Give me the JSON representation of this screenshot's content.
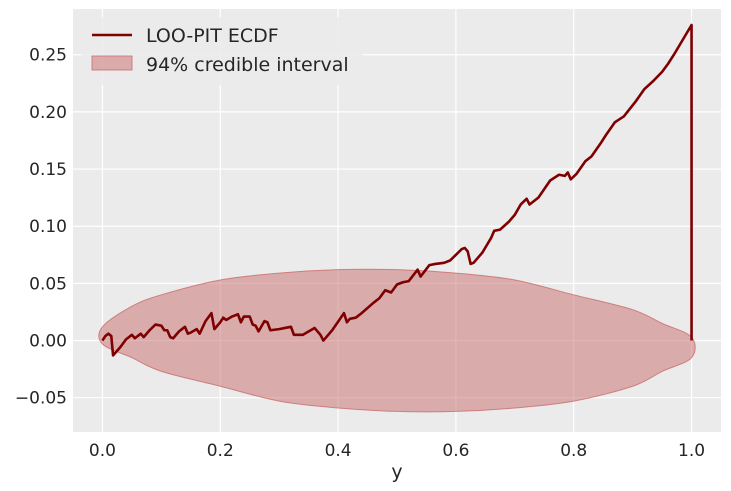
{
  "chart_data": {
    "type": "line",
    "title": "",
    "xlabel": "y",
    "ylabel": "",
    "xlim": [
      -0.05,
      1.05
    ],
    "ylim": [
      -0.08,
      0.29
    ],
    "grid": true,
    "legend_position": "top-left",
    "x_ticks": [
      {
        "value": 0.0,
        "label": "0.0"
      },
      {
        "value": 0.2,
        "label": "0.2"
      },
      {
        "value": 0.4,
        "label": "0.4"
      },
      {
        "value": 0.6,
        "label": "0.6"
      },
      {
        "value": 0.8,
        "label": "0.8"
      },
      {
        "value": 1.0,
        "label": "1.0"
      }
    ],
    "y_ticks": [
      {
        "value": -0.05,
        "label": "−0.05"
      },
      {
        "value": 0.0,
        "label": "0.00"
      },
      {
        "value": 0.05,
        "label": "0.05"
      },
      {
        "value": 0.1,
        "label": "0.10"
      },
      {
        "value": 0.15,
        "label": "0.15"
      },
      {
        "value": 0.2,
        "label": "0.20"
      },
      {
        "value": 0.25,
        "label": "0.25"
      }
    ],
    "series": [
      {
        "name": "LOO-PIT ECDF",
        "color": "#7f0000",
        "points": [
          [
            0.0,
            0.0
          ],
          [
            0.005,
            0.004
          ],
          [
            0.01,
            0.006
          ],
          [
            0.015,
            0.004
          ],
          [
            0.018,
            -0.013
          ],
          [
            0.03,
            -0.006
          ],
          [
            0.04,
            0.001
          ],
          [
            0.05,
            0.005
          ],
          [
            0.055,
            0.002
          ],
          [
            0.065,
            0.006
          ],
          [
            0.07,
            0.003
          ],
          [
            0.08,
            0.009
          ],
          [
            0.09,
            0.014
          ],
          [
            0.1,
            0.013
          ],
          [
            0.105,
            0.009
          ],
          [
            0.11,
            0.009
          ],
          [
            0.115,
            0.003
          ],
          [
            0.12,
            0.002
          ],
          [
            0.13,
            0.008
          ],
          [
            0.14,
            0.012
          ],
          [
            0.145,
            0.006
          ],
          [
            0.15,
            0.007
          ],
          [
            0.16,
            0.01
          ],
          [
            0.165,
            0.006
          ],
          [
            0.175,
            0.017
          ],
          [
            0.185,
            0.024
          ],
          [
            0.19,
            0.01
          ],
          [
            0.2,
            0.016
          ],
          [
            0.205,
            0.02
          ],
          [
            0.21,
            0.018
          ],
          [
            0.22,
            0.021
          ],
          [
            0.23,
            0.023
          ],
          [
            0.235,
            0.016
          ],
          [
            0.24,
            0.021
          ],
          [
            0.25,
            0.021
          ],
          [
            0.255,
            0.014
          ],
          [
            0.26,
            0.013
          ],
          [
            0.265,
            0.008
          ],
          [
            0.275,
            0.017
          ],
          [
            0.28,
            0.016
          ],
          [
            0.285,
            0.009
          ],
          [
            0.3,
            0.01
          ],
          [
            0.31,
            0.011
          ],
          [
            0.32,
            0.012
          ],
          [
            0.325,
            0.005
          ],
          [
            0.34,
            0.005
          ],
          [
            0.36,
            0.011
          ],
          [
            0.37,
            0.005
          ],
          [
            0.375,
            0.0
          ],
          [
            0.39,
            0.009
          ],
          [
            0.41,
            0.024
          ],
          [
            0.415,
            0.016
          ],
          [
            0.42,
            0.019
          ],
          [
            0.43,
            0.02
          ],
          [
            0.44,
            0.024
          ],
          [
            0.46,
            0.033
          ],
          [
            0.47,
            0.037
          ],
          [
            0.48,
            0.044
          ],
          [
            0.49,
            0.042
          ],
          [
            0.5,
            0.049
          ],
          [
            0.51,
            0.051
          ],
          [
            0.52,
            0.052
          ],
          [
            0.535,
            0.062
          ],
          [
            0.54,
            0.056
          ],
          [
            0.555,
            0.066
          ],
          [
            0.565,
            0.067
          ],
          [
            0.58,
            0.068
          ],
          [
            0.59,
            0.07
          ],
          [
            0.6,
            0.075
          ],
          [
            0.61,
            0.08
          ],
          [
            0.615,
            0.081
          ],
          [
            0.62,
            0.078
          ],
          [
            0.625,
            0.067
          ],
          [
            0.63,
            0.068
          ],
          [
            0.645,
            0.077
          ],
          [
            0.66,
            0.09
          ],
          [
            0.665,
            0.096
          ],
          [
            0.675,
            0.097
          ],
          [
            0.69,
            0.104
          ],
          [
            0.7,
            0.11
          ],
          [
            0.71,
            0.119
          ],
          [
            0.72,
            0.124
          ],
          [
            0.725,
            0.119
          ],
          [
            0.74,
            0.125
          ],
          [
            0.76,
            0.14
          ],
          [
            0.775,
            0.145
          ],
          [
            0.785,
            0.144
          ],
          [
            0.79,
            0.147
          ],
          [
            0.795,
            0.141
          ],
          [
            0.805,
            0.146
          ],
          [
            0.82,
            0.157
          ],
          [
            0.83,
            0.161
          ],
          [
            0.845,
            0.172
          ],
          [
            0.855,
            0.18
          ],
          [
            0.87,
            0.191
          ],
          [
            0.885,
            0.196
          ],
          [
            0.905,
            0.209
          ],
          [
            0.92,
            0.22
          ],
          [
            0.935,
            0.227
          ],
          [
            0.95,
            0.235
          ],
          [
            0.96,
            0.242
          ],
          [
            0.97,
            0.25
          ],
          [
            0.985,
            0.263
          ],
          [
            1.0,
            0.276
          ],
          [
            1.0,
            0.0
          ]
        ]
      }
    ],
    "band": {
      "name": "94% credible interval",
      "color": "#c96c6c",
      "opacity": 0.5,
      "upper": [
        [
          0.0,
          0.012
        ],
        [
          0.05,
          0.03
        ],
        [
          0.1,
          0.04
        ],
        [
          0.2,
          0.053
        ],
        [
          0.3,
          0.059
        ],
        [
          0.4,
          0.062
        ],
        [
          0.5,
          0.062
        ],
        [
          0.6,
          0.059
        ],
        [
          0.7,
          0.053
        ],
        [
          0.8,
          0.04
        ],
        [
          0.9,
          0.027
        ],
        [
          0.95,
          0.015
        ],
        [
          1.0,
          0.003
        ]
      ],
      "lower": [
        [
          1.0,
          -0.015
        ],
        [
          0.95,
          -0.027
        ],
        [
          0.9,
          -0.04
        ],
        [
          0.8,
          -0.053
        ],
        [
          0.7,
          -0.059
        ],
        [
          0.6,
          -0.062
        ],
        [
          0.5,
          -0.062
        ],
        [
          0.4,
          -0.059
        ],
        [
          0.3,
          -0.053
        ],
        [
          0.2,
          -0.04
        ],
        [
          0.1,
          -0.027
        ],
        [
          0.05,
          -0.015
        ],
        [
          0.0,
          -0.003
        ]
      ]
    }
  },
  "legend": {
    "items": [
      {
        "label": "LOO-PIT ECDF",
        "kind": "line"
      },
      {
        "label": "94% credible interval",
        "kind": "patch"
      }
    ]
  }
}
